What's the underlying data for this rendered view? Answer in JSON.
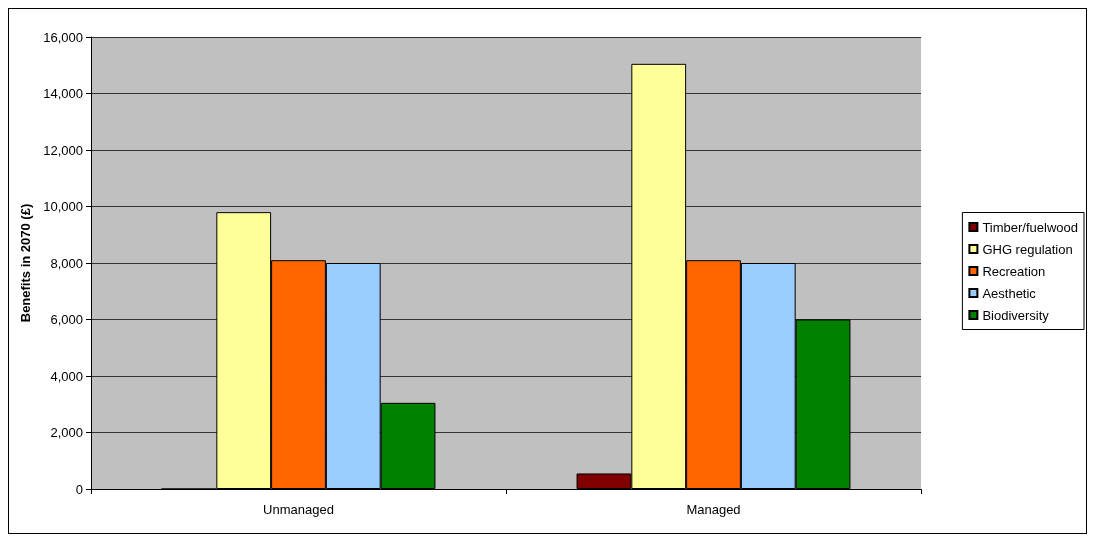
{
  "chart_data": {
    "type": "bar",
    "ylabel": "Benefits in 2070 (£)",
    "categories": [
      "Unmanaged",
      "Managed"
    ],
    "series": [
      {
        "name": "Timber/fuelwood",
        "color": "#800000",
        "values": [
          0,
          550
        ]
      },
      {
        "name": "GHG regulation",
        "color": "#ffff99",
        "values": [
          9800,
          15050
        ]
      },
      {
        "name": "Recreation",
        "color": "#ff6600",
        "values": [
          8100,
          8100
        ]
      },
      {
        "name": "Aesthetic",
        "color": "#99ccff",
        "values": [
          8000,
          8000
        ]
      },
      {
        "name": "Biodiversity",
        "color": "#008000",
        "values": [
          3050,
          6000
        ]
      }
    ],
    "ylim": [
      0,
      16000
    ],
    "yticks": [
      0,
      {
        "value": 2000,
        "label": "2,000"
      },
      {
        "value": 4000,
        "label": "4,000"
      },
      {
        "value": 6000,
        "label": "6,000"
      },
      {
        "value": 8000,
        "label": "8,000"
      },
      {
        "value": 10000,
        "label": "10,000"
      },
      {
        "value": 12000,
        "label": "12,000"
      },
      {
        "value": 14000,
        "label": "14,000"
      },
      {
        "value": 16000,
        "label": "16,000"
      }
    ],
    "grid": "y",
    "legend": "right"
  }
}
